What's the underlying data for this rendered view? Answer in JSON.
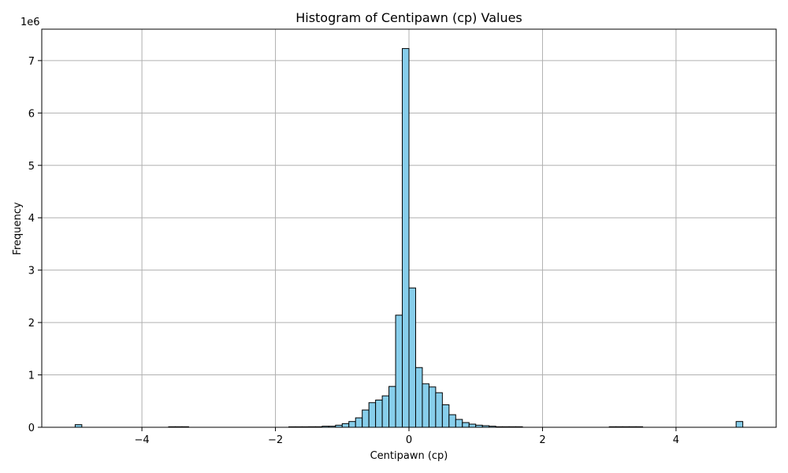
{
  "chart_data": {
    "type": "bar",
    "title": "Histogram of Centipawn (cp) Values",
    "xlabel": "Centipawn (cp)",
    "ylabel": "Frequency",
    "y_scale_label": "1e6",
    "y_multiplier": 1000000,
    "xlim": [
      -5.5,
      5.5
    ],
    "ylim": [
      0,
      7.6
    ],
    "x_ticks": [
      -4,
      -2,
      0,
      2,
      4
    ],
    "x_tick_labels": [
      "−4",
      "−2",
      "0",
      "2",
      "4"
    ],
    "y_ticks": [
      0,
      1,
      2,
      3,
      4,
      5,
      6,
      7
    ],
    "y_tick_labels": [
      "0",
      "1",
      "2",
      "3",
      "4",
      "5",
      "6",
      "7"
    ],
    "grid": true,
    "bin_width": 0.1,
    "bar_color": "#87ceeb",
    "edge_color": "#000000",
    "bins": [
      {
        "x": -4.95,
        "value": 0.05
      },
      {
        "x": -3.55,
        "value": 0.01
      },
      {
        "x": -3.45,
        "value": 0.01
      },
      {
        "x": -3.35,
        "value": 0.01
      },
      {
        "x": -1.75,
        "value": 0.005
      },
      {
        "x": -1.65,
        "value": 0.005
      },
      {
        "x": -1.55,
        "value": 0.005
      },
      {
        "x": -1.45,
        "value": 0.01
      },
      {
        "x": -1.35,
        "value": 0.01
      },
      {
        "x": -1.25,
        "value": 0.02
      },
      {
        "x": -1.15,
        "value": 0.02
      },
      {
        "x": -1.05,
        "value": 0.04
      },
      {
        "x": -0.95,
        "value": 0.07
      },
      {
        "x": -0.85,
        "value": 0.11
      },
      {
        "x": -0.75,
        "value": 0.18
      },
      {
        "x": -0.65,
        "value": 0.33
      },
      {
        "x": -0.55,
        "value": 0.47
      },
      {
        "x": -0.45,
        "value": 0.52
      },
      {
        "x": -0.35,
        "value": 0.6
      },
      {
        "x": -0.25,
        "value": 0.78
      },
      {
        "x": -0.15,
        "value": 2.14
      },
      {
        "x": -0.05,
        "value": 7.23
      },
      {
        "x": 0.05,
        "value": 2.66
      },
      {
        "x": 0.15,
        "value": 1.14
      },
      {
        "x": 0.25,
        "value": 0.83
      },
      {
        "x": 0.35,
        "value": 0.77
      },
      {
        "x": 0.45,
        "value": 0.66
      },
      {
        "x": 0.55,
        "value": 0.43
      },
      {
        "x": 0.65,
        "value": 0.24
      },
      {
        "x": 0.75,
        "value": 0.15
      },
      {
        "x": 0.85,
        "value": 0.09
      },
      {
        "x": 0.95,
        "value": 0.06
      },
      {
        "x": 1.05,
        "value": 0.04
      },
      {
        "x": 1.15,
        "value": 0.03
      },
      {
        "x": 1.25,
        "value": 0.02
      },
      {
        "x": 1.35,
        "value": 0.01
      },
      {
        "x": 1.45,
        "value": 0.01
      },
      {
        "x": 1.55,
        "value": 0.01
      },
      {
        "x": 1.65,
        "value": 0.01
      },
      {
        "x": 3.05,
        "value": 0.01
      },
      {
        "x": 3.15,
        "value": 0.01
      },
      {
        "x": 3.25,
        "value": 0.01
      },
      {
        "x": 3.35,
        "value": 0.01
      },
      {
        "x": 3.45,
        "value": 0.01
      },
      {
        "x": 4.95,
        "value": 0.11
      }
    ]
  }
}
